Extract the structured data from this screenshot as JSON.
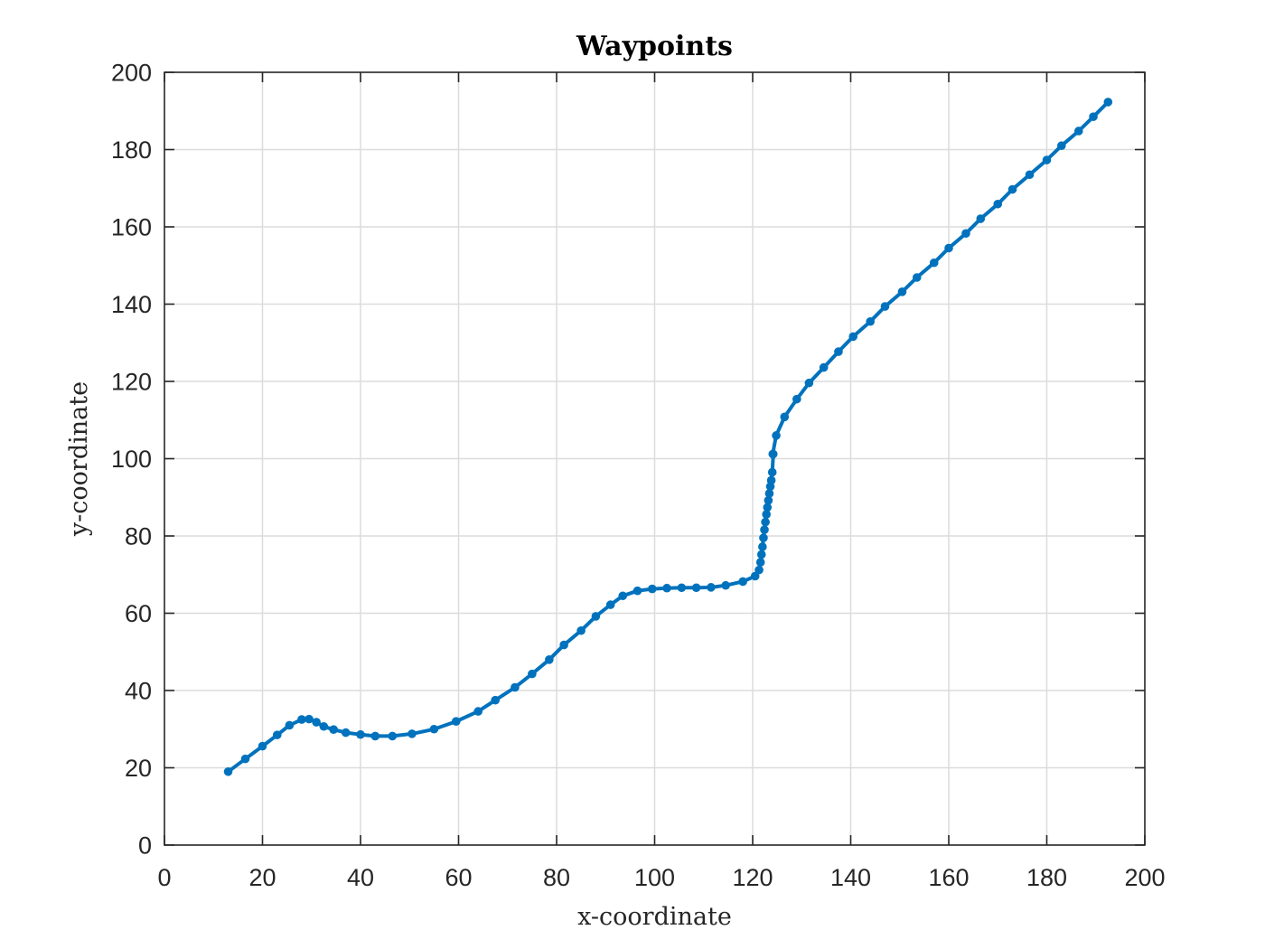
{
  "chart_data": {
    "type": "line",
    "title": "Waypoints",
    "xlabel": "x-coordinate",
    "ylabel": "y-coordinate",
    "xlim": [
      0,
      200
    ],
    "ylim": [
      0,
      200
    ],
    "xticks": [
      0,
      20,
      40,
      60,
      80,
      100,
      120,
      140,
      160,
      180,
      200
    ],
    "yticks": [
      0,
      20,
      40,
      60,
      80,
      100,
      120,
      140,
      160,
      180,
      200
    ],
    "xtick_labels": [
      "0",
      "20",
      "40",
      "60",
      "80",
      "100",
      "120",
      "140",
      "160",
      "180",
      "200"
    ],
    "ytick_labels": [
      "0",
      "20",
      "40",
      "60",
      "80",
      "100",
      "120",
      "140",
      "160",
      "180",
      "200"
    ],
    "grid": true,
    "series": [
      {
        "color": "#0072bd",
        "marker": "dot",
        "x": [
          13,
          16.5,
          20,
          23,
          25.5,
          28,
          29.5,
          31,
          32.5,
          34.5,
          37,
          40,
          43,
          46.5,
          50.5,
          55,
          59.5,
          64,
          67.5,
          71.5,
          75,
          78.5,
          81.5,
          85,
          88,
          91,
          93.5,
          96.5,
          99.5,
          102.5,
          105.5,
          108.5,
          111.5,
          114.5,
          118,
          120.5,
          121.3,
          121.6,
          121.8,
          122,
          122.2,
          122.4,
          122.6,
          122.8,
          123,
          123.2,
          123.4,
          123.6,
          123.8,
          124,
          124.2,
          124.1,
          124.8,
          126.5,
          129,
          131.5,
          134.5,
          137.5,
          140.5,
          144,
          147,
          150.5,
          153.5,
          157,
          160,
          163.5,
          166.5,
          170,
          173,
          176.5,
          180,
          183,
          186.5,
          189.5,
          192.5
        ],
        "y": [
          19,
          22.3,
          25.6,
          28.5,
          31,
          32.5,
          32.6,
          31.8,
          30.7,
          29.9,
          29.1,
          28.6,
          28.2,
          28.2,
          28.8,
          30,
          32,
          34.6,
          37.5,
          40.8,
          44.3,
          48,
          51.8,
          55.5,
          59.2,
          62.2,
          64.5,
          65.8,
          66.3,
          66.5,
          66.6,
          66.6,
          66.7,
          67.2,
          68.2,
          69.6,
          71.2,
          73.2,
          75.2,
          77.2,
          79.5,
          81.6,
          83.6,
          85.6,
          87.4,
          89.2,
          91,
          92.8,
          94.4,
          96.5,
          101.2,
          101.2,
          106,
          110.8,
          115.4,
          119.6,
          123.6,
          127.7,
          131.6,
          135.5,
          139.4,
          143.2,
          146.9,
          150.7,
          154.5,
          158.3,
          162.1,
          165.9,
          169.7,
          173.5,
          177.3,
          181,
          184.8,
          188.5,
          192.3
        ]
      }
    ]
  }
}
